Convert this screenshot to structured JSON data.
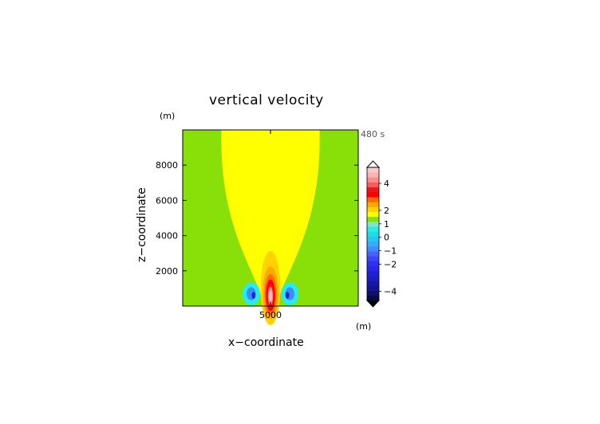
{
  "chart_data": {
    "type": "heatmap",
    "title": "vertical velocity",
    "time_label": "480 s",
    "xlabel": "x−coordinate",
    "ylabel": "z−coordinate",
    "x_unit": "(m)",
    "z_unit": "(m)",
    "xlim": [
      0,
      10000
    ],
    "zlim": [
      0,
      10000
    ],
    "x_ticks": [
      {
        "value": 5000,
        "label": "5000"
      }
    ],
    "z_ticks": [
      {
        "value": 2000,
        "label": "2000"
      },
      {
        "value": 4000,
        "label": "4000"
      },
      {
        "value": 6000,
        "label": "6000"
      },
      {
        "value": 8000,
        "label": "8000"
      }
    ],
    "features": [
      {
        "kind": "plume",
        "value": 0.25,
        "center_x": 5000,
        "base_z": 0,
        "top_z": 10000,
        "half_width_top": 2800
      },
      {
        "kind": "updraft",
        "center_x": 5000,
        "center_z": 750,
        "peak": 5
      },
      {
        "kind": "downdraft",
        "center_x": 3900,
        "center_z": 700,
        "peak": -2
      },
      {
        "kind": "downdraft",
        "center_x": 6100,
        "center_z": 700,
        "peak": -2
      }
    ],
    "colorbar": {
      "levels": [
        {
          "value": -4.5,
          "color": "#0a0a4a"
        },
        {
          "value": -4.25,
          "color": "#10106a"
        },
        {
          "value": -4.0,
          "color": "#14148c"
        },
        {
          "value": -3.75,
          "color": "#1818a8"
        },
        {
          "value": -3.5,
          "color": "#1c1cbf"
        },
        {
          "value": -3.25,
          "color": "#2020d4"
        },
        {
          "value": -3.0,
          "color": "#2828e6"
        },
        {
          "value": -2.75,
          "color": "#3030f2"
        },
        {
          "value": -2.5,
          "color": "#3a46f8"
        },
        {
          "value": -2.25,
          "color": "#4a60fc"
        },
        {
          "value": -2.0,
          "color": "#3c8cff"
        },
        {
          "value": -1.75,
          "color": "#3ca8ff"
        },
        {
          "value": -1.5,
          "color": "#28c4f4"
        },
        {
          "value": -1.25,
          "color": "#20dce4"
        },
        {
          "value": -1.0,
          "color": "#28ecec"
        },
        {
          "value": -0.5,
          "color": "#7ce6c8"
        },
        {
          "value": 0.0,
          "color": "#88e008"
        },
        {
          "value": 0.5,
          "color": "#ffff00"
        },
        {
          "value": 1.0,
          "color": "#ffd200"
        },
        {
          "value": 1.5,
          "color": "#ffa800"
        },
        {
          "value": 2.0,
          "color": "#ff6a00"
        },
        {
          "value": 2.5,
          "color": "#ff0000"
        },
        {
          "value": 3.0,
          "color": "#f21414"
        },
        {
          "value": 3.5,
          "color": "#ff5a5a"
        },
        {
          "value": 4.0,
          "color": "#ff8c8c"
        },
        {
          "value": 4.5,
          "color": "#ffb0b0"
        },
        {
          "value": 5.0,
          "color": "#ffc8c8"
        }
      ],
      "tick_labels": [
        {
          "value": 4,
          "label": "4"
        },
        {
          "value": 2,
          "label": "2"
        },
        {
          "value": 1,
          "label": "1"
        },
        {
          "value": 0,
          "label": "0"
        },
        {
          "value": -1,
          "label": "−1"
        },
        {
          "value": -2,
          "label": "−2"
        },
        {
          "value": -4,
          "label": "−4"
        }
      ],
      "extend": "both"
    },
    "colors": {
      "background": "#88e008",
      "plume": "#ffff00",
      "downdraft_outer": "#28ecec",
      "downdraft_inner": "#3c8cff",
      "downdraft_core": "#2028d0"
    }
  }
}
